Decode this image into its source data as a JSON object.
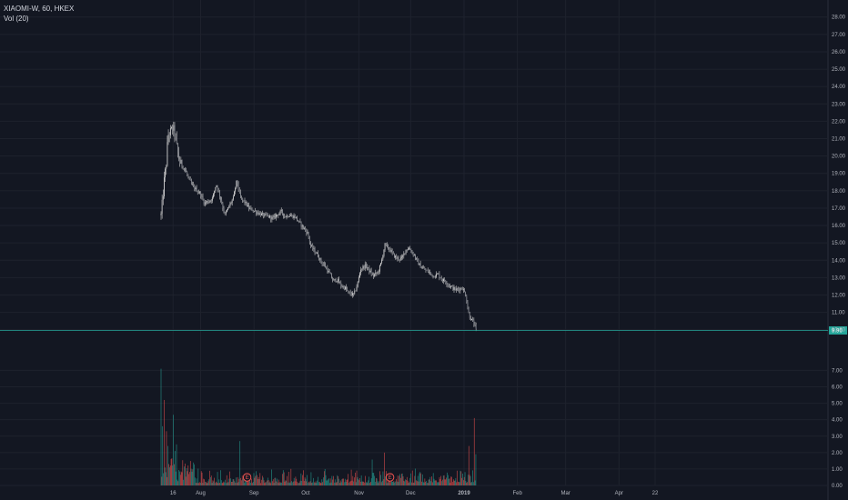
{
  "legend": {
    "symbol_line": "XIAOMI-W, 60, HKEX",
    "volume_line": "Vol (20)"
  },
  "colors": {
    "background": "#131722",
    "grid": "#1e222d",
    "axis_text": "#b2b5be",
    "candle": "#c8c8c8",
    "volume_up": "#26a69a",
    "volume_down": "#ef5350",
    "last_price": "#26a69a",
    "event_marker": "#ef5350"
  },
  "last_price_label": "9.96",
  "events": [
    {
      "label": "E",
      "date": "2018-08-28"
    },
    {
      "label": "E",
      "date": "2018-11-19"
    }
  ],
  "chart_data": [
    {
      "type": "candlestick",
      "symbol": "XIAOMI-W",
      "interval": "60",
      "exchange": "HKEX",
      "x_tick_labels": [
        "16",
        "Aug",
        "Sep",
        "Oct",
        "Nov",
        "Dec",
        "2019",
        "Feb",
        "Mar",
        "Apr",
        "22"
      ],
      "y_tick_labels": [
        "10.00",
        "11.00",
        "12.00",
        "13.00",
        "14.00",
        "15.00",
        "16.00",
        "17.00",
        "18.00",
        "19.00",
        "20.00",
        "21.00",
        "22.00",
        "23.00",
        "24.00",
        "25.00",
        "26.00",
        "27.00",
        "28.00"
      ],
      "ylim": [
        9.2,
        28.3
      ],
      "grid": true,
      "last_price": 9.96,
      "price_path": [
        [
          "2018-07-09",
          16.6
        ],
        [
          "2018-07-10",
          17.6
        ],
        [
          "2018-07-11",
          18.8
        ],
        [
          "2018-07-12",
          19.5
        ],
        [
          "2018-07-13",
          21.2
        ],
        [
          "2018-07-16",
          21.6
        ],
        [
          "2018-07-17",
          21.3
        ],
        [
          "2018-07-18",
          20.6
        ],
        [
          "2018-07-19",
          20.0
        ],
        [
          "2018-07-20",
          19.6
        ],
        [
          "2018-07-23",
          19.2
        ],
        [
          "2018-07-25",
          18.7
        ],
        [
          "2018-07-27",
          18.3
        ],
        [
          "2018-07-30",
          18.0
        ],
        [
          "2018-08-01",
          17.8
        ],
        [
          "2018-08-03",
          17.3
        ],
        [
          "2018-08-06",
          17.4
        ],
        [
          "2018-08-08",
          17.6
        ],
        [
          "2018-08-10",
          18.4
        ],
        [
          "2018-08-13",
          17.4
        ],
        [
          "2018-08-15",
          16.6
        ],
        [
          "2018-08-17",
          17.0
        ],
        [
          "2018-08-20",
          17.6
        ],
        [
          "2018-08-22",
          18.6
        ],
        [
          "2018-08-24",
          17.6
        ],
        [
          "2018-08-27",
          17.3
        ],
        [
          "2018-08-29",
          17.0
        ],
        [
          "2018-08-31",
          16.9
        ],
        [
          "2018-09-04",
          16.7
        ],
        [
          "2018-09-06",
          16.6
        ],
        [
          "2018-09-10",
          16.5
        ],
        [
          "2018-09-12",
          16.4
        ],
        [
          "2018-09-14",
          16.6
        ],
        [
          "2018-09-17",
          16.8
        ],
        [
          "2018-09-19",
          16.5
        ],
        [
          "2018-09-21",
          16.6
        ],
        [
          "2018-09-25",
          16.5
        ],
        [
          "2018-09-27",
          16.2
        ],
        [
          "2018-10-02",
          15.6
        ],
        [
          "2018-10-04",
          14.8
        ],
        [
          "2018-10-08",
          14.3
        ],
        [
          "2018-10-10",
          13.9
        ],
        [
          "2018-10-12",
          13.7
        ],
        [
          "2018-10-15",
          13.2
        ],
        [
          "2018-10-17",
          12.8
        ],
        [
          "2018-10-19",
          12.9
        ],
        [
          "2018-10-22",
          12.5
        ],
        [
          "2018-10-24",
          12.4
        ],
        [
          "2018-10-26",
          12.1
        ],
        [
          "2018-10-29",
          12.0
        ],
        [
          "2018-10-31",
          12.6
        ],
        [
          "2018-11-02",
          13.5
        ],
        [
          "2018-11-05",
          13.7
        ],
        [
          "2018-11-07",
          13.4
        ],
        [
          "2018-11-09",
          13.1
        ],
        [
          "2018-11-12",
          13.3
        ],
        [
          "2018-11-14",
          13.9
        ],
        [
          "2018-11-16",
          14.9
        ],
        [
          "2018-11-19",
          14.6
        ],
        [
          "2018-11-21",
          14.3
        ],
        [
          "2018-11-23",
          14.1
        ],
        [
          "2018-11-26",
          14.1
        ],
        [
          "2018-11-28",
          14.6
        ],
        [
          "2018-11-30",
          14.7
        ],
        [
          "2018-12-03",
          14.3
        ],
        [
          "2018-12-05",
          13.9
        ],
        [
          "2018-12-07",
          13.6
        ],
        [
          "2018-12-10",
          13.4
        ],
        [
          "2018-12-12",
          13.3
        ],
        [
          "2018-12-14",
          13.1
        ],
        [
          "2018-12-17",
          13.2
        ],
        [
          "2018-12-19",
          12.9
        ],
        [
          "2018-12-21",
          12.8
        ],
        [
          "2018-12-24",
          12.5
        ],
        [
          "2018-12-27",
          12.3
        ],
        [
          "2018-12-31",
          12.4
        ],
        [
          "2019-01-02",
          12.0
        ],
        [
          "2019-01-03",
          11.3
        ],
        [
          "2019-01-04",
          10.8
        ],
        [
          "2019-01-07",
          10.3
        ],
        [
          "2019-01-08",
          9.96
        ]
      ]
    },
    {
      "type": "bar",
      "name": "Vol (20)",
      "y_tick_labels": [
        "0.00",
        "1.00",
        "2.00",
        "3.00",
        "4.00",
        "5.00",
        "6.00",
        "7.00"
      ],
      "ylim": [
        0,
        7.3
      ],
      "peaks": [
        [
          "2018-07-09",
          7.1
        ],
        [
          "2018-07-10",
          3.6
        ],
        [
          "2018-07-11",
          5.2
        ],
        [
          "2018-07-12",
          3.3
        ],
        [
          "2018-07-13",
          2.4
        ],
        [
          "2018-07-16",
          4.3
        ],
        [
          "2018-07-17",
          2.1
        ],
        [
          "2018-07-18",
          2.5
        ],
        [
          "2018-08-24",
          2.7
        ],
        [
          "2018-11-16",
          2.0
        ],
        [
          "2018-12-28",
          0.9
        ],
        [
          "2019-01-04",
          2.4
        ],
        [
          "2019-01-07",
          4.1
        ],
        [
          "2019-01-08",
          1.9
        ]
      ],
      "typical_level": [
        0.15,
        0.75
      ]
    }
  ]
}
